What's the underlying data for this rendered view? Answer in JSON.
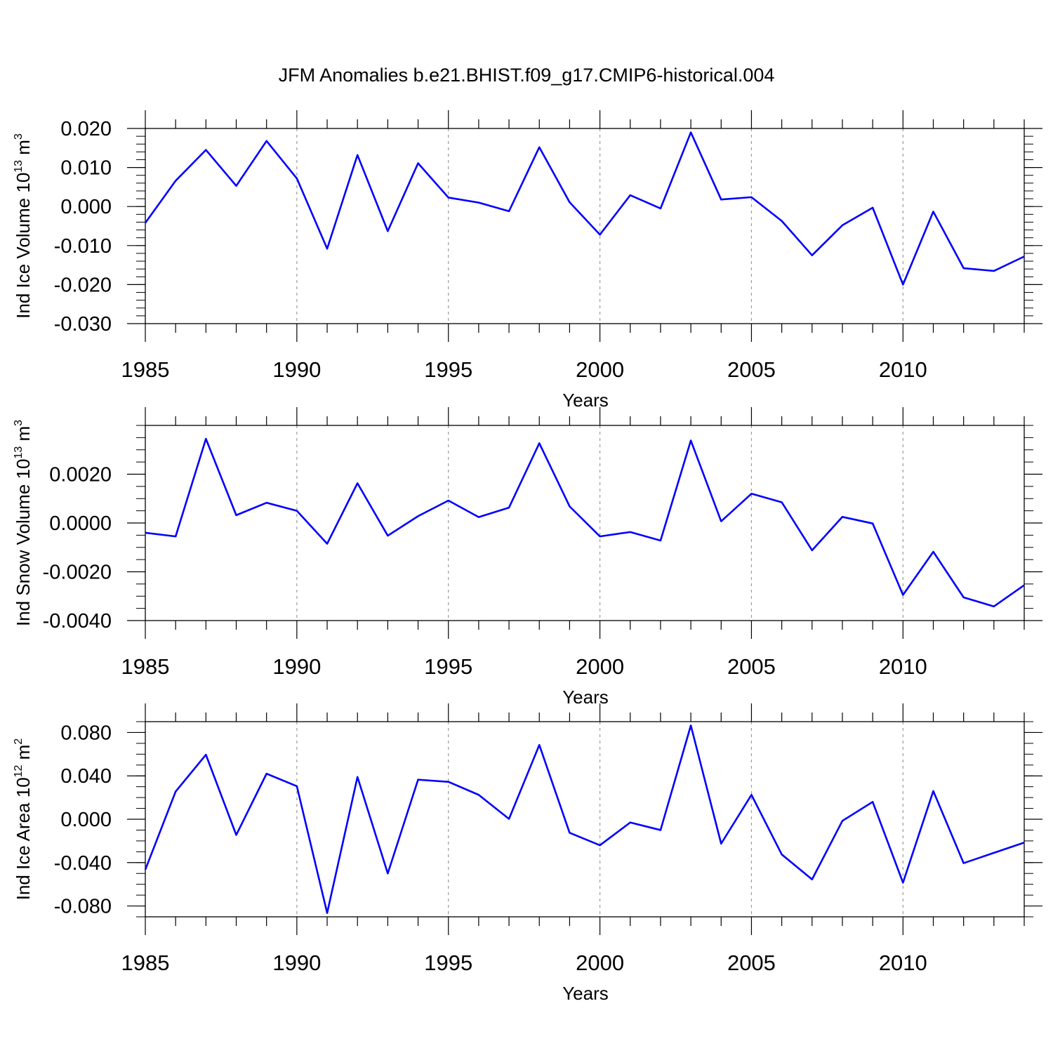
{
  "figure": {
    "title": "JFM Anomalies b.e21.BHIST.f09_g17.CMIP6-historical.004"
  },
  "colors": {
    "series": "#0000ff",
    "axis": "#000000",
    "gridline": "#999999"
  },
  "chart_data": [
    {
      "type": "line",
      "ylabel": "Ind Ice Volume",
      "ylabel_unit": "10",
      "ylabel_exp": "13",
      "ylabel_unit2": "m",
      "ylabel_unit2_exp": "3",
      "xlabel": "Years",
      "xlim": [
        1985,
        2014
      ],
      "ylim": [
        -0.03,
        0.02
      ],
      "yticks": [
        0.02,
        0.01,
        0.0,
        -0.01,
        -0.02,
        -0.03
      ],
      "ytick_labels": [
        "0.020",
        "0.010",
        "0.000",
        "-0.010",
        "-0.020",
        "-0.030"
      ],
      "yminor_step": 0.002,
      "xticks": [
        1985,
        1990,
        1995,
        2000,
        2005,
        2010
      ],
      "xtick_labels": [
        "1985",
        "1990",
        "1995",
        "2000",
        "2005",
        "2010"
      ],
      "x": [
        1985,
        1986,
        1987,
        1988,
        1989,
        1990,
        1991,
        1992,
        1993,
        1994,
        1995,
        1996,
        1997,
        1998,
        1999,
        2000,
        2001,
        2002,
        2003,
        2004,
        2005,
        2006,
        2007,
        2008,
        2009,
        2010,
        2011,
        2012,
        2013,
        2014
      ],
      "series": [
        {
          "name": "Ind Ice Volume",
          "values": [
            -0.0042,
            0.0066,
            0.0145,
            0.0053,
            0.0168,
            0.0072,
            -0.0108,
            0.0132,
            -0.0063,
            0.0111,
            0.0023,
            0.001,
            -0.0012,
            0.0152,
            0.0011,
            -0.0072,
            0.0029,
            -0.0005,
            0.019,
            0.0018,
            0.0024,
            -0.0037,
            -0.0125,
            -0.0048,
            -0.0003,
            -0.02,
            -0.0013,
            -0.0158,
            -0.0165,
            -0.0128
          ]
        }
      ]
    },
    {
      "type": "line",
      "ylabel": "Ind Snow Volume",
      "ylabel_unit": "10",
      "ylabel_exp": "13",
      "ylabel_unit2": "m",
      "ylabel_unit2_exp": "3",
      "xlabel": "Years",
      "xlim": [
        1985,
        2014
      ],
      "ylim": [
        -0.004,
        0.004
      ],
      "yticks": [
        0.002,
        0.0,
        -0.002,
        -0.004
      ],
      "ytick_labels": [
        "0.0020",
        "0.0000",
        "-0.0020",
        "-0.0040"
      ],
      "yminor_step": 0.0005,
      "xticks": [
        1985,
        1990,
        1995,
        2000,
        2005,
        2010
      ],
      "xtick_labels": [
        "1985",
        "1990",
        "1995",
        "2000",
        "2005",
        "2010"
      ],
      "x": [
        1985,
        1986,
        1987,
        1988,
        1989,
        1990,
        1991,
        1992,
        1993,
        1994,
        1995,
        1996,
        1997,
        1998,
        1999,
        2000,
        2001,
        2002,
        2003,
        2004,
        2005,
        2006,
        2007,
        2008,
        2009,
        2010,
        2011,
        2012,
        2013,
        2014
      ],
      "series": [
        {
          "name": "Ind Snow Volume",
          "values": [
            -0.0004,
            -0.00055,
            0.00345,
            0.00032,
            0.00083,
            0.0005,
            -0.00085,
            0.00163,
            -0.00052,
            0.00028,
            0.00092,
            0.00024,
            0.00063,
            0.00327,
            0.00068,
            -0.00055,
            -0.00037,
            -0.00072,
            0.00338,
            7e-05,
            0.0012,
            0.00085,
            -0.00112,
            0.00025,
            -2e-05,
            -0.00295,
            -0.00118,
            -0.00305,
            -0.00342,
            -0.00255
          ]
        }
      ]
    },
    {
      "type": "line",
      "ylabel": "Ind Ice Area",
      "ylabel_unit": "10",
      "ylabel_exp": "12",
      "ylabel_unit2": "m",
      "ylabel_unit2_exp": "2",
      "xlabel": "Years",
      "xlim": [
        1985,
        2014
      ],
      "ylim": [
        -0.09,
        0.09
      ],
      "yticks": [
        0.08,
        0.04,
        0.0,
        -0.04,
        -0.08
      ],
      "ytick_labels": [
        "0.080",
        "0.040",
        "0.000",
        "-0.040",
        "-0.080"
      ],
      "yminor_step": 0.01,
      "xticks": [
        1985,
        1990,
        1995,
        2000,
        2005,
        2010
      ],
      "xtick_labels": [
        "1985",
        "1990",
        "1995",
        "2000",
        "2005",
        "2010"
      ],
      "x": [
        1985,
        1986,
        1987,
        1988,
        1989,
        1990,
        1991,
        1992,
        1993,
        1994,
        1995,
        1996,
        1997,
        1998,
        1999,
        2000,
        2001,
        2002,
        2003,
        2004,
        2005,
        2006,
        2007,
        2008,
        2009,
        2010,
        2011,
        2012,
        2013,
        2014
      ],
      "series": [
        {
          "name": "Ind Ice Area",
          "values": [
            -0.0465,
            0.0255,
            0.0595,
            -0.0145,
            0.042,
            0.0305,
            -0.0865,
            0.039,
            -0.05,
            0.0365,
            0.0345,
            0.0225,
            0.0003,
            0.0685,
            -0.0125,
            -0.024,
            -0.003,
            -0.01,
            0.0865,
            -0.0225,
            0.0225,
            -0.0325,
            -0.0555,
            -0.0015,
            0.016,
            -0.0585,
            0.026,
            -0.0405,
            -0.031,
            -0.0215
          ]
        }
      ]
    }
  ]
}
